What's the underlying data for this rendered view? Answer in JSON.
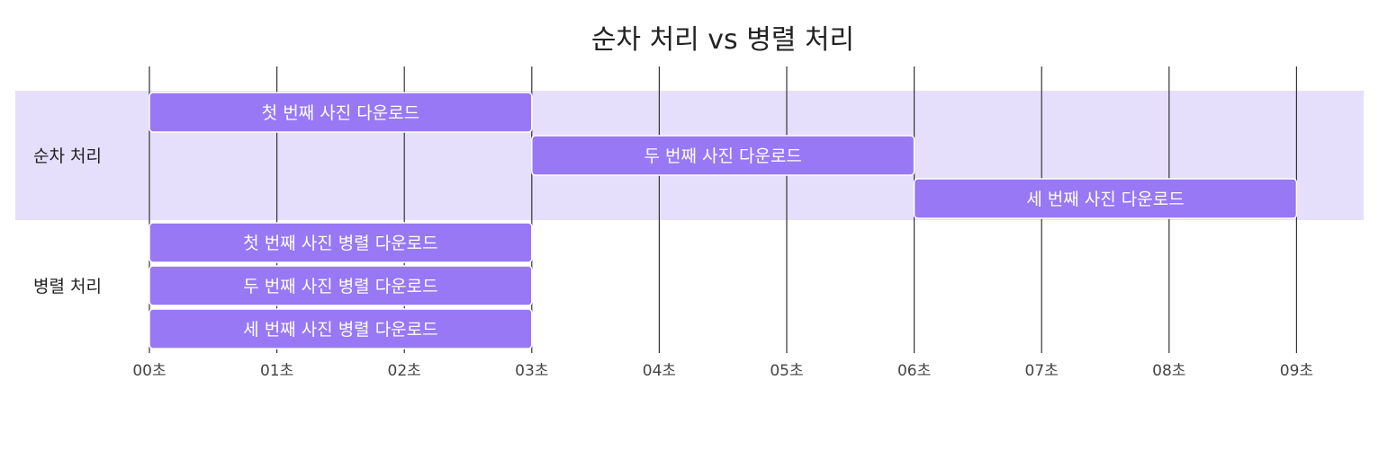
{
  "chart_data": {
    "type": "gantt",
    "title": "순차 처리 vs 병렬 처리",
    "x_unit": "초",
    "x_ticks": [
      "00초",
      "01초",
      "02초",
      "03초",
      "04초",
      "05초",
      "06초",
      "07초",
      "08초",
      "09초"
    ],
    "xlim": [
      0,
      9.5
    ],
    "grid": true,
    "sections": [
      {
        "name": "순차 처리",
        "highlight_color": "#e6dffc",
        "tasks": [
          {
            "label": "첫 번째 사진 다운로드",
            "start": 0,
            "end": 3
          },
          {
            "label": "두 번째 사진 다운로드",
            "start": 3,
            "end": 6
          },
          {
            "label": "세 번째 사진 다운로드",
            "start": 6,
            "end": 9
          }
        ]
      },
      {
        "name": "병렬 처리",
        "highlight_color": "#ffffff",
        "tasks": [
          {
            "label": "첫 번째 사진 병렬 다운로드",
            "start": 0,
            "end": 3
          },
          {
            "label": "두 번째 사진 병렬 다운로드",
            "start": 0,
            "end": 3
          },
          {
            "label": "세 번째 사진 병렬 다운로드",
            "start": 0,
            "end": 3
          }
        ]
      }
    ],
    "bar_color": "#9878f5",
    "grid_color": "#333333"
  }
}
